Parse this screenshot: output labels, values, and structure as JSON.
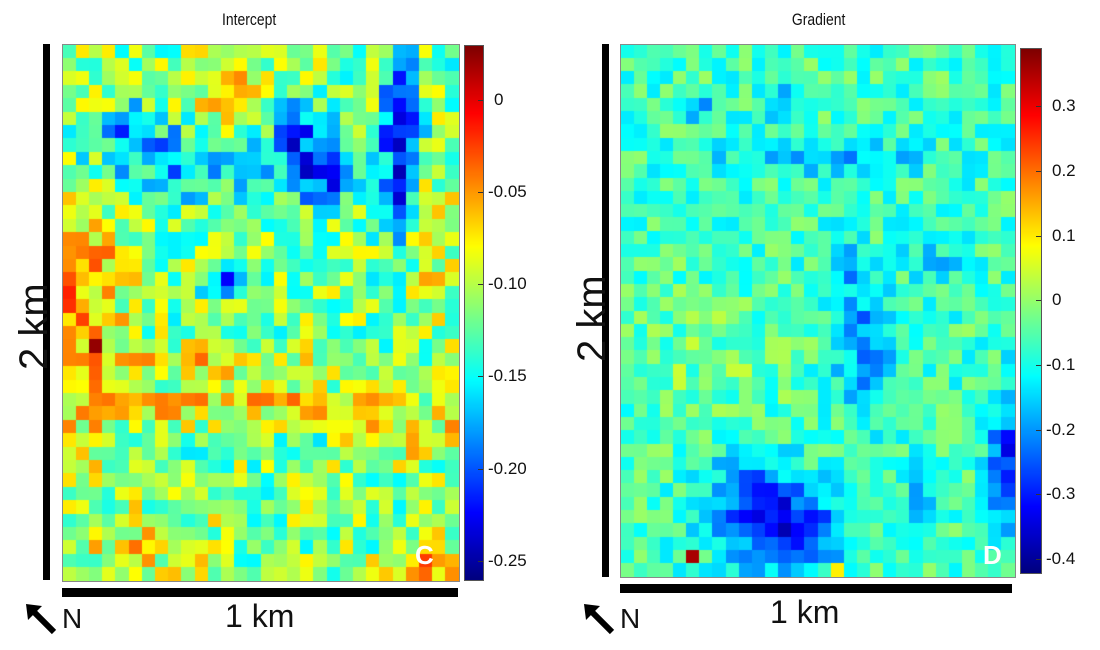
{
  "chart_data": [
    {
      "type": "heatmap",
      "title": "Intercept",
      "panel_letter": "C",
      "colormap": "jet",
      "vmin": -0.26,
      "vmax": 0.03,
      "colorbar_ticks": [
        {
          "value": 0,
          "label": "0"
        },
        {
          "value": -0.05,
          "label": "-0.05"
        },
        {
          "value": -0.1,
          "label": "-0.10"
        },
        {
          "value": -0.15,
          "label": "-0.15"
        },
        {
          "value": -0.2,
          "label": "-0.20"
        },
        {
          "value": -0.25,
          "label": "-0.25"
        }
      ],
      "vertical_scale_label": "2 km",
      "horizontal_scale_label": "1 km",
      "north_label": "N"
    },
    {
      "type": "heatmap",
      "title": "Gradient",
      "panel_letter": "D",
      "colormap": "jet",
      "vmin": -0.42,
      "vmax": 0.39,
      "colorbar_ticks": [
        {
          "value": 0.3,
          "label": "0.3"
        },
        {
          "value": 0.2,
          "label": "0.2"
        },
        {
          "value": 0.1,
          "label": "0.1"
        },
        {
          "value": 0,
          "label": "0"
        },
        {
          "value": -0.1,
          "label": "-0.1"
        },
        {
          "value": -0.2,
          "label": "-0.2"
        },
        {
          "value": -0.3,
          "label": "-0.3"
        },
        {
          "value": -0.4,
          "label": "-0.4"
        }
      ],
      "vertical_scale_label": "2 km",
      "horizontal_scale_label": "1 km",
      "north_label": "N"
    }
  ]
}
